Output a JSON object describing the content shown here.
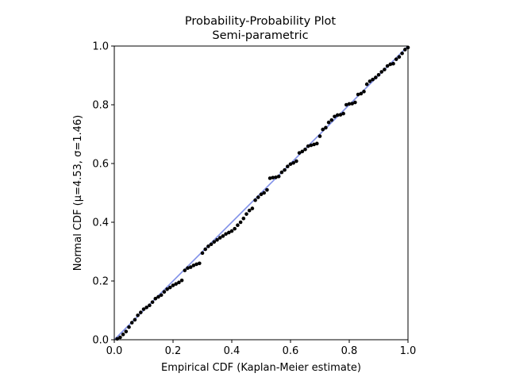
{
  "chart_data": {
    "type": "scatter",
    "title": "Probability-Probability Plot",
    "subtitle": "Semi-parametric",
    "xlabel": "Empirical CDF (Kaplan-Meier estimate)",
    "ylabel": "Normal CDF (μ=4.53, σ=1.46)",
    "xlim": [
      0,
      1
    ],
    "ylim": [
      0,
      1
    ],
    "xticks": [
      "0.0",
      "0.2",
      "0.4",
      "0.6",
      "0.8",
      "1.0"
    ],
    "yticks": [
      "0.0",
      "0.2",
      "0.4",
      "0.6",
      "0.8",
      "1.0"
    ],
    "grid": false,
    "legend": "none",
    "reference_line": {
      "x": [
        0,
        1
      ],
      "y": [
        0,
        1
      ],
      "color": "#7f8fe8"
    },
    "series": [
      {
        "color": "#000000",
        "points": [
          [
            0.01,
            0.003
          ],
          [
            0.02,
            0.008
          ],
          [
            0.03,
            0.018
          ],
          [
            0.04,
            0.028
          ],
          [
            0.05,
            0.043
          ],
          [
            0.06,
            0.058
          ],
          [
            0.07,
            0.068
          ],
          [
            0.08,
            0.083
          ],
          [
            0.09,
            0.093
          ],
          [
            0.1,
            0.104
          ],
          [
            0.11,
            0.11
          ],
          [
            0.12,
            0.117
          ],
          [
            0.13,
            0.128
          ],
          [
            0.14,
            0.14
          ],
          [
            0.15,
            0.146
          ],
          [
            0.16,
            0.152
          ],
          [
            0.17,
            0.163
          ],
          [
            0.18,
            0.172
          ],
          [
            0.19,
            0.178
          ],
          [
            0.2,
            0.185
          ],
          [
            0.21,
            0.19
          ],
          [
            0.22,
            0.195
          ],
          [
            0.23,
            0.202
          ],
          [
            0.24,
            0.236
          ],
          [
            0.25,
            0.244
          ],
          [
            0.26,
            0.247
          ],
          [
            0.27,
            0.253
          ],
          [
            0.28,
            0.257
          ],
          [
            0.29,
            0.26
          ],
          [
            0.3,
            0.295
          ],
          [
            0.31,
            0.308
          ],
          [
            0.32,
            0.318
          ],
          [
            0.33,
            0.325
          ],
          [
            0.34,
            0.333
          ],
          [
            0.35,
            0.34
          ],
          [
            0.36,
            0.347
          ],
          [
            0.37,
            0.353
          ],
          [
            0.38,
            0.36
          ],
          [
            0.39,
            0.365
          ],
          [
            0.4,
            0.37
          ],
          [
            0.41,
            0.378
          ],
          [
            0.42,
            0.39
          ],
          [
            0.43,
            0.4
          ],
          [
            0.44,
            0.413
          ],
          [
            0.45,
            0.428
          ],
          [
            0.46,
            0.44
          ],
          [
            0.47,
            0.447
          ],
          [
            0.48,
            0.475
          ],
          [
            0.49,
            0.485
          ],
          [
            0.5,
            0.495
          ],
          [
            0.51,
            0.5
          ],
          [
            0.52,
            0.51
          ],
          [
            0.53,
            0.55
          ],
          [
            0.54,
            0.552
          ],
          [
            0.55,
            0.553
          ],
          [
            0.56,
            0.556
          ],
          [
            0.57,
            0.57
          ],
          [
            0.58,
            0.578
          ],
          [
            0.59,
            0.59
          ],
          [
            0.6,
            0.598
          ],
          [
            0.61,
            0.602
          ],
          [
            0.62,
            0.608
          ],
          [
            0.63,
            0.636
          ],
          [
            0.64,
            0.641
          ],
          [
            0.65,
            0.648
          ],
          [
            0.66,
            0.659
          ],
          [
            0.67,
            0.662
          ],
          [
            0.68,
            0.665
          ],
          [
            0.69,
            0.668
          ],
          [
            0.7,
            0.693
          ],
          [
            0.71,
            0.716
          ],
          [
            0.72,
            0.722
          ],
          [
            0.73,
            0.74
          ],
          [
            0.74,
            0.748
          ],
          [
            0.75,
            0.76
          ],
          [
            0.76,
            0.765
          ],
          [
            0.77,
            0.766
          ],
          [
            0.78,
            0.77
          ],
          [
            0.79,
            0.8
          ],
          [
            0.8,
            0.803
          ],
          [
            0.81,
            0.804
          ],
          [
            0.82,
            0.808
          ],
          [
            0.83,
            0.835
          ],
          [
            0.84,
            0.838
          ],
          [
            0.85,
            0.845
          ],
          [
            0.86,
            0.87
          ],
          [
            0.87,
            0.88
          ],
          [
            0.88,
            0.886
          ],
          [
            0.89,
            0.893
          ],
          [
            0.9,
            0.902
          ],
          [
            0.91,
            0.912
          ],
          [
            0.92,
            0.92
          ],
          [
            0.93,
            0.932
          ],
          [
            0.94,
            0.938
          ],
          [
            0.95,
            0.94
          ],
          [
            0.96,
            0.955
          ],
          [
            0.97,
            0.963
          ],
          [
            0.98,
            0.975
          ],
          [
            0.99,
            0.988
          ],
          [
            1.0,
            0.995
          ]
        ]
      }
    ]
  }
}
